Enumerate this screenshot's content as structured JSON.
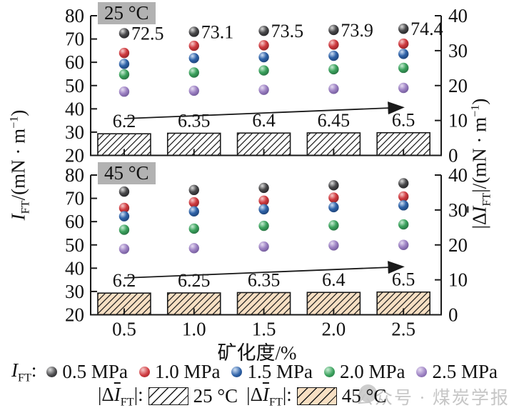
{
  "axes": {
    "x_title": "矿化度/%",
    "left_title": {
      "sym": "I",
      "sub": "FT",
      "unit_pre": "/(mN · m",
      "exp": "−1",
      "unit_post": ")"
    },
    "right_title": {
      "pre": "|Δ",
      "sym": "I",
      "sub": "FT",
      "unit_pre": "|/(mN · m",
      "exp": "−1",
      "unit_post": ")"
    }
  },
  "chart_data": [
    {
      "type": "scatter+bar",
      "panel_label": "25 °C",
      "x": [
        0.5,
        1.0,
        1.5,
        2.0,
        2.5
      ],
      "left_ylim": [
        20,
        80
      ],
      "right_ylim": [
        0,
        40
      ],
      "left_ticks": [
        20,
        30,
        40,
        50,
        60,
        70,
        80
      ],
      "right_ticks": [
        0,
        10,
        20,
        30,
        40
      ],
      "series": [
        {
          "name": "0.5 MPa",
          "color": "black",
          "values": [
            72.5,
            73.1,
            73.5,
            73.9,
            74.4
          ],
          "point_labels": [
            "72.5",
            "73.1",
            "73.5",
            "73.9",
            "74.4"
          ]
        },
        {
          "name": "1.0 MPa",
          "color": "red",
          "values": [
            64.0,
            67.1,
            67.3,
            67.6,
            68.0
          ]
        },
        {
          "name": "1.5 MPa",
          "color": "blue",
          "values": [
            59.3,
            61.8,
            62.2,
            62.8,
            63.6
          ]
        },
        {
          "name": "2.0 MPa",
          "color": "green",
          "values": [
            54.8,
            55.6,
            56.5,
            57.0,
            57.6
          ]
        },
        {
          "name": "2.5 MPa",
          "color": "purple",
          "values": [
            47.4,
            47.8,
            48.2,
            48.6,
            49.0
          ]
        }
      ],
      "bars": {
        "name": "|ΔIFT| 25 °C",
        "values": [
          6.2,
          6.35,
          6.4,
          6.45,
          6.5
        ],
        "labels": [
          "6.2",
          "6.35",
          "6.4",
          "6.45",
          "6.5"
        ],
        "fill": "#ffffff"
      },
      "arrow": {
        "from": [
          0.5,
          35.8
        ],
        "to": [
          2.49,
          40.6
        ]
      }
    },
    {
      "type": "scatter+bar",
      "panel_label": "45 °C",
      "x": [
        0.5,
        1.0,
        1.5,
        2.0,
        2.5
      ],
      "x_tick_labels": [
        "0.5",
        "1.0",
        "1.5",
        "2.0",
        "2.5"
      ],
      "left_ylim": [
        20,
        80
      ],
      "right_ylim": [
        0,
        40
      ],
      "left_ticks": [
        20,
        30,
        40,
        50,
        60,
        70,
        80
      ],
      "right_ticks": [
        0,
        10,
        20,
        30,
        40
      ],
      "series": [
        {
          "name": "0.5 MPa",
          "color": "black",
          "values": [
            72.9,
            73.6,
            74.5,
            75.6,
            76.5
          ]
        },
        {
          "name": "1.0 MPa",
          "color": "red",
          "values": [
            65.9,
            68.3,
            69.0,
            70.3,
            70.8
          ]
        },
        {
          "name": "1.5 MPa",
          "color": "blue",
          "values": [
            62.3,
            64.4,
            65.3,
            66.2,
            67.0
          ]
        },
        {
          "name": "2.0 MPa",
          "color": "green",
          "values": [
            56.5,
            57.0,
            58.2,
            58.4,
            58.8
          ]
        },
        {
          "name": "2.5 MPa",
          "color": "purple",
          "values": [
            48.3,
            48.6,
            49.3,
            49.8,
            50.0
          ]
        }
      ],
      "bars": {
        "name": "|ΔIFT| 45 °C",
        "values": [
          6.2,
          6.25,
          6.35,
          6.4,
          6.5
        ],
        "labels": [
          "6.2",
          "6.25",
          "6.35",
          "6.4",
          "6.5"
        ],
        "fill": "#f7dfc3"
      },
      "arrow": {
        "from": [
          0.5,
          35.8
        ],
        "to": [
          2.49,
          40.6
        ]
      }
    }
  ],
  "legend": {
    "pressure": {
      "prefix": {
        "sym": "I",
        "sub": "FT",
        "colon": ":"
      },
      "items": [
        {
          "color": "black",
          "label": "0.5 MPa"
        },
        {
          "color": "red",
          "label": "1.0 MPa"
        },
        {
          "color": "blue",
          "label": "1.5 MPa"
        },
        {
          "color": "green",
          "label": "2.0 MPa"
        },
        {
          "color": "purple",
          "label": "2.5 MPa"
        }
      ]
    },
    "bars": {
      "items": [
        {
          "pre": "|Δ",
          "sym": "I",
          "sub": "FT",
          "post": "|:",
          "swatch": "h25",
          "label": "25 °C"
        },
        {
          "pre": "|Δ",
          "sym": "I",
          "sub": "FT",
          "post": "|:",
          "swatch": "h45",
          "label": "45 °C"
        }
      ]
    }
  },
  "watermark": {
    "text": "公众号 · 煤炭学报"
  },
  "colors": {
    "black": "#414143",
    "red": "#cf3a3f",
    "blue": "#2e62a8",
    "green": "#3ba25d",
    "purple": "#9e83c4",
    "bar_25": "#ffffff",
    "bar_45": "#f7dfc3",
    "panel_label_bg": "#b2b2b2",
    "watermark": "#c6c6c6",
    "axis": "#1a1a1a"
  }
}
